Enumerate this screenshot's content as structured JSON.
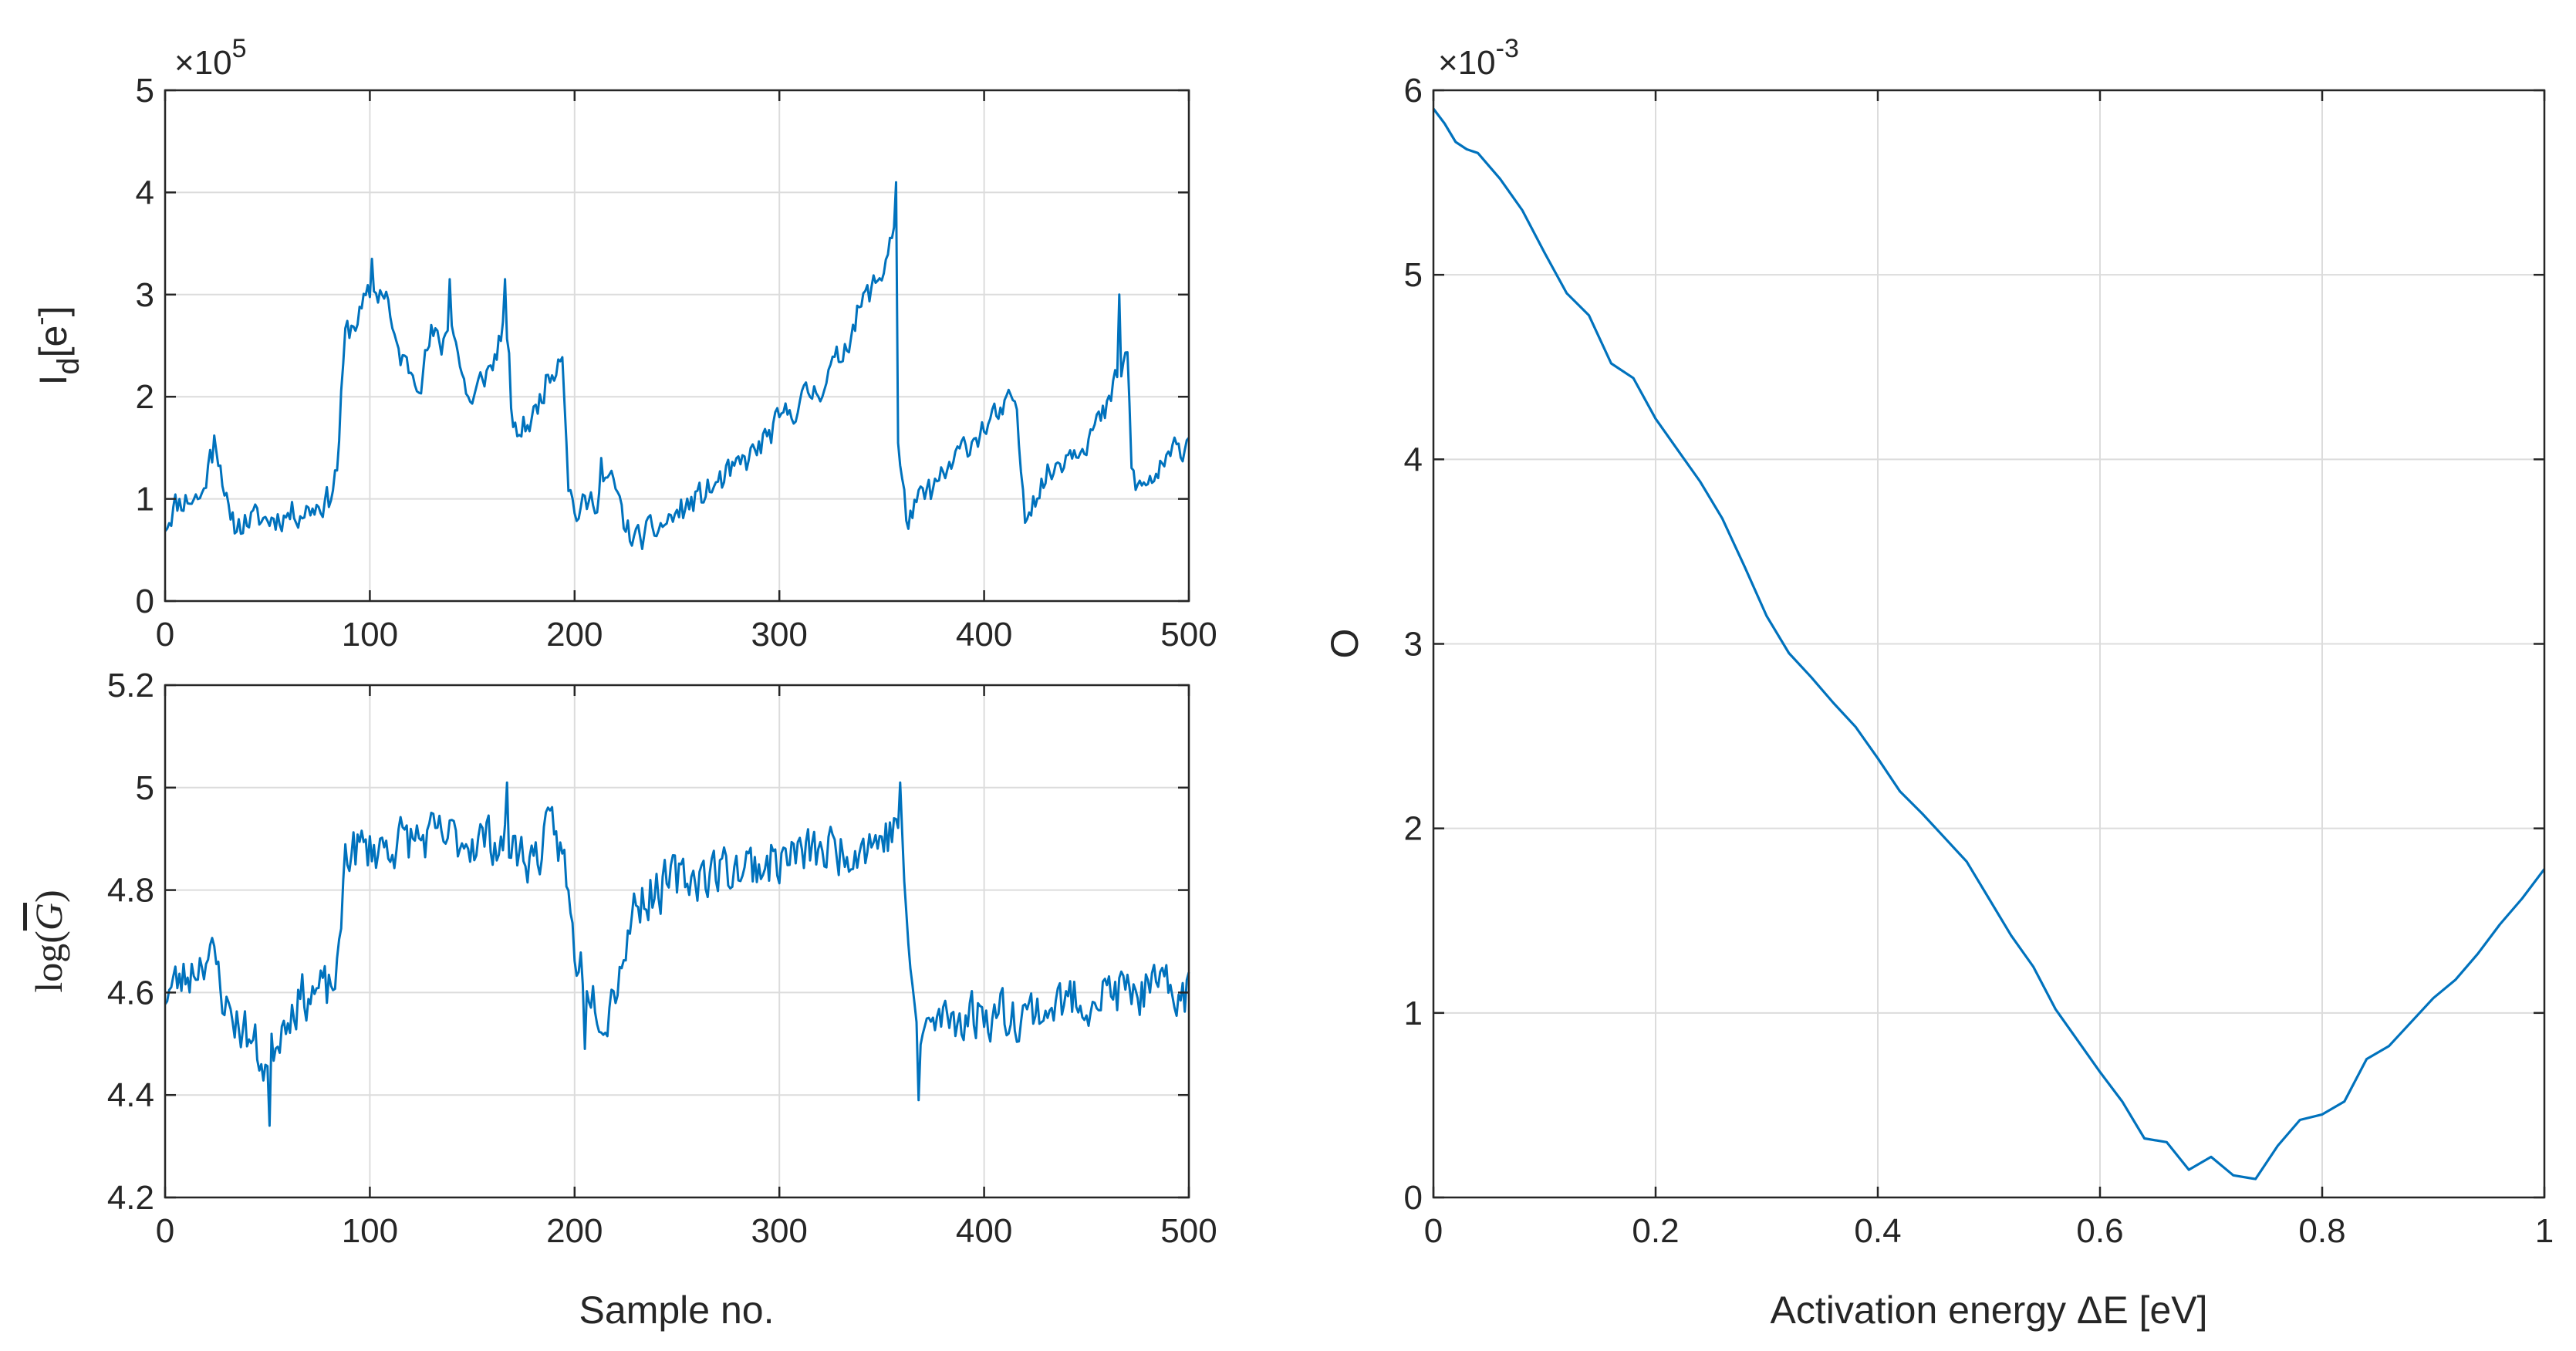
{
  "chart_data": [
    {
      "type": "line",
      "id": "top-left",
      "xlabel": "",
      "ylabel": "I_d[e⁻]",
      "ylabel_main": "I",
      "ylabel_sub": "d",
      "ylabel_bracket": "[e",
      "ylabel_sup": "-",
      "ylabel_close": "]",
      "multiplier": "×10",
      "multiplier_exp": "5",
      "xlim": [
        0,
        500
      ],
      "ylim": [
        0,
        5
      ],
      "xticks": [
        "0",
        "100",
        "200",
        "300",
        "400",
        "500"
      ],
      "yticks": [
        "0",
        "1",
        "2",
        "3",
        "4",
        "5"
      ],
      "grid": true,
      "x_step": 1,
      "anchors": [
        [
          0,
          0.75
        ],
        [
          5,
          0.95
        ],
        [
          10,
          1.0
        ],
        [
          18,
          1.02
        ],
        [
          22,
          1.4
        ],
        [
          25,
          1.55
        ],
        [
          28,
          1.25
        ],
        [
          32,
          0.7
        ],
        [
          40,
          0.8
        ],
        [
          50,
          0.8
        ],
        [
          60,
          0.85
        ],
        [
          70,
          0.9
        ],
        [
          80,
          1.0
        ],
        [
          84,
          1.3
        ],
        [
          88,
          2.6
        ],
        [
          95,
          2.8
        ],
        [
          100,
          3.0
        ],
        [
          108,
          3.05
        ],
        [
          112,
          2.5
        ],
        [
          118,
          2.3
        ],
        [
          125,
          2.2
        ],
        [
          130,
          2.6
        ],
        [
          135,
          2.5
        ],
        [
          140,
          2.8
        ],
        [
          145,
          2.2
        ],
        [
          150,
          1.9
        ],
        [
          155,
          2.2
        ],
        [
          160,
          2.3
        ],
        [
          165,
          2.7
        ],
        [
          168,
          2.3
        ],
        [
          170,
          1.6
        ],
        [
          175,
          1.7
        ],
        [
          180,
          1.8
        ],
        [
          185,
          2.1
        ],
        [
          190,
          2.3
        ],
        [
          194,
          2.5
        ],
        [
          197,
          1.2
        ],
        [
          200,
          0.85
        ],
        [
          210,
          1.0
        ],
        [
          215,
          1.2
        ],
        [
          220,
          1.1
        ],
        [
          225,
          0.7
        ],
        [
          230,
          0.6
        ],
        [
          240,
          0.7
        ],
        [
          250,
          0.85
        ],
        [
          260,
          1.0
        ],
        [
          270,
          1.15
        ],
        [
          280,
          1.3
        ],
        [
          290,
          1.5
        ],
        [
          300,
          1.75
        ],
        [
          310,
          1.95
        ],
        [
          320,
          2.1
        ],
        [
          330,
          2.4
        ],
        [
          340,
          2.9
        ],
        [
          350,
          3.2
        ],
        [
          356,
          3.7
        ],
        [
          358,
          1.5
        ],
        [
          362,
          0.8
        ],
        [
          370,
          1.0
        ],
        [
          380,
          1.2
        ],
        [
          390,
          1.5
        ],
        [
          400,
          1.7
        ],
        [
          410,
          1.85
        ],
        [
          415,
          2.0
        ],
        [
          418,
          1.3
        ],
        [
          420,
          0.9
        ],
        [
          430,
          1.2
        ],
        [
          440,
          1.45
        ],
        [
          450,
          1.6
        ],
        [
          460,
          1.85
        ],
        [
          465,
          2.2
        ],
        [
          470,
          2.4
        ],
        [
          472,
          1.3
        ],
        [
          475,
          1.1
        ],
        [
          480,
          1.15
        ],
        [
          490,
          1.35
        ],
        [
          500,
          1.6
        ]
      ],
      "spikes": [
        [
          24,
          1.62
        ],
        [
          101,
          3.35
        ],
        [
          139,
          3.15
        ],
        [
          166,
          3.15
        ],
        [
          213,
          1.4
        ],
        [
          357,
          4.1
        ],
        [
          466,
          3.0
        ],
        [
          493,
          1.6
        ]
      ],
      "noise": 0.13,
      "seed": 11
    },
    {
      "type": "line",
      "id": "bottom-left",
      "xlabel": "Sample no.",
      "ylabel": "log(Ḡ)",
      "ylabel_log": "log(",
      "ylabel_g": "G",
      "ylabel_close": ")",
      "xlim": [
        0,
        500
      ],
      "ylim": [
        4.2,
        5.2
      ],
      "xticks": [
        "0",
        "100",
        "200",
        "300",
        "400",
        "500"
      ],
      "yticks": [
        "4.2",
        "4.4",
        "4.6",
        "4.8",
        "5",
        "5.2"
      ],
      "grid": true,
      "x_step": 1,
      "anchors": [
        [
          0,
          4.6
        ],
        [
          10,
          4.63
        ],
        [
          20,
          4.68
        ],
        [
          25,
          4.65
        ],
        [
          30,
          4.57
        ],
        [
          40,
          4.52
        ],
        [
          50,
          4.45
        ],
        [
          55,
          4.52
        ],
        [
          60,
          4.57
        ],
        [
          70,
          4.6
        ],
        [
          80,
          4.6
        ],
        [
          85,
          4.65
        ],
        [
          88,
          4.88
        ],
        [
          100,
          4.88
        ],
        [
          120,
          4.9
        ],
        [
          140,
          4.9
        ],
        [
          160,
          4.9
        ],
        [
          170,
          4.88
        ],
        [
          180,
          4.86
        ],
        [
          190,
          4.92
        ],
        [
          195,
          4.85
        ],
        [
          200,
          4.68
        ],
        [
          210,
          4.6
        ],
        [
          215,
          4.55
        ],
        [
          222,
          4.65
        ],
        [
          230,
          4.78
        ],
        [
          250,
          4.82
        ],
        [
          270,
          4.84
        ],
        [
          290,
          4.85
        ],
        [
          310,
          4.87
        ],
        [
          330,
          4.88
        ],
        [
          350,
          4.9
        ],
        [
          360,
          4.93
        ],
        [
          363,
          4.65
        ],
        [
          368,
          4.52
        ],
        [
          380,
          4.55
        ],
        [
          400,
          4.56
        ],
        [
          420,
          4.56
        ],
        [
          440,
          4.58
        ],
        [
          460,
          4.6
        ],
        [
          480,
          4.6
        ],
        [
          500,
          4.6
        ]
      ],
      "spikes": [
        [
          51,
          4.34
        ],
        [
          167,
          5.01
        ],
        [
          359,
          5.01
        ],
        [
          368,
          4.39
        ],
        [
          205,
          4.49
        ]
      ],
      "noise": 0.045,
      "seed": 23
    },
    {
      "type": "line",
      "id": "right",
      "xlabel": "Activation energy ΔE [eV]",
      "ylabel": "O",
      "multiplier": "×10",
      "multiplier_exp": "-3",
      "xlim": [
        0,
        1
      ],
      "ylim": [
        0,
        6
      ],
      "xticks": [
        "0",
        "0.2",
        "0.4",
        "0.6",
        "0.8",
        "1"
      ],
      "yticks": [
        "0",
        "1",
        "2",
        "3",
        "4",
        "5",
        "6"
      ],
      "grid": true,
      "x": [
        0,
        0.01,
        0.02,
        0.03,
        0.04,
        0.06,
        0.08,
        0.1,
        0.12,
        0.14,
        0.16,
        0.18,
        0.2,
        0.22,
        0.24,
        0.26,
        0.28,
        0.3,
        0.32,
        0.34,
        0.36,
        0.38,
        0.4,
        0.42,
        0.44,
        0.46,
        0.48,
        0.5,
        0.52,
        0.54,
        0.56,
        0.58,
        0.6,
        0.62,
        0.64,
        0.66,
        0.68,
        0.7,
        0.72,
        0.74,
        0.76,
        0.78,
        0.8,
        0.82,
        0.84,
        0.86,
        0.88,
        0.9,
        0.92,
        0.94,
        0.96,
        0.98,
        1.0
      ],
      "y": [
        5.9,
        5.82,
        5.72,
        5.68,
        5.66,
        5.52,
        5.35,
        5.12,
        4.9,
        4.78,
        4.52,
        4.44,
        4.22,
        4.05,
        3.88,
        3.68,
        3.42,
        3.15,
        2.95,
        2.82,
        2.68,
        2.55,
        2.38,
        2.2,
        2.08,
        1.95,
        1.82,
        1.62,
        1.42,
        1.25,
        1.02,
        0.85,
        0.68,
        0.52,
        0.32,
        0.3,
        0.15,
        0.22,
        0.12,
        0.1,
        0.28,
        0.42,
        0.45,
        0.52,
        0.75,
        0.82,
        0.95,
        1.08,
        1.18,
        1.32,
        1.48,
        1.62,
        1.78
      ]
    }
  ]
}
